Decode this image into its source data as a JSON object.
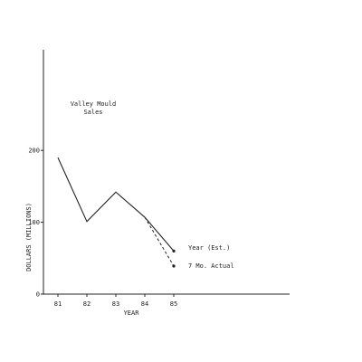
{
  "chart_data": {
    "type": "line",
    "title_lines": [
      "Valley Mould",
      "Sales"
    ],
    "xlabel": "YEAR",
    "ylabel": "DOLLARS (MILLIONS)",
    "x": [
      "81",
      "82",
      "83",
      "84",
      "85"
    ],
    "yticks": [
      "0",
      "100",
      "200"
    ],
    "ylim": [
      0,
      340
    ],
    "series": [
      {
        "name": "Year (Est.)",
        "values": [
          190,
          101,
          142,
          107,
          60
        ],
        "style": "solid"
      },
      {
        "name": "7 Mo. Actual",
        "values": [
          null,
          null,
          null,
          107,
          39
        ],
        "style": "dashed"
      }
    ]
  }
}
